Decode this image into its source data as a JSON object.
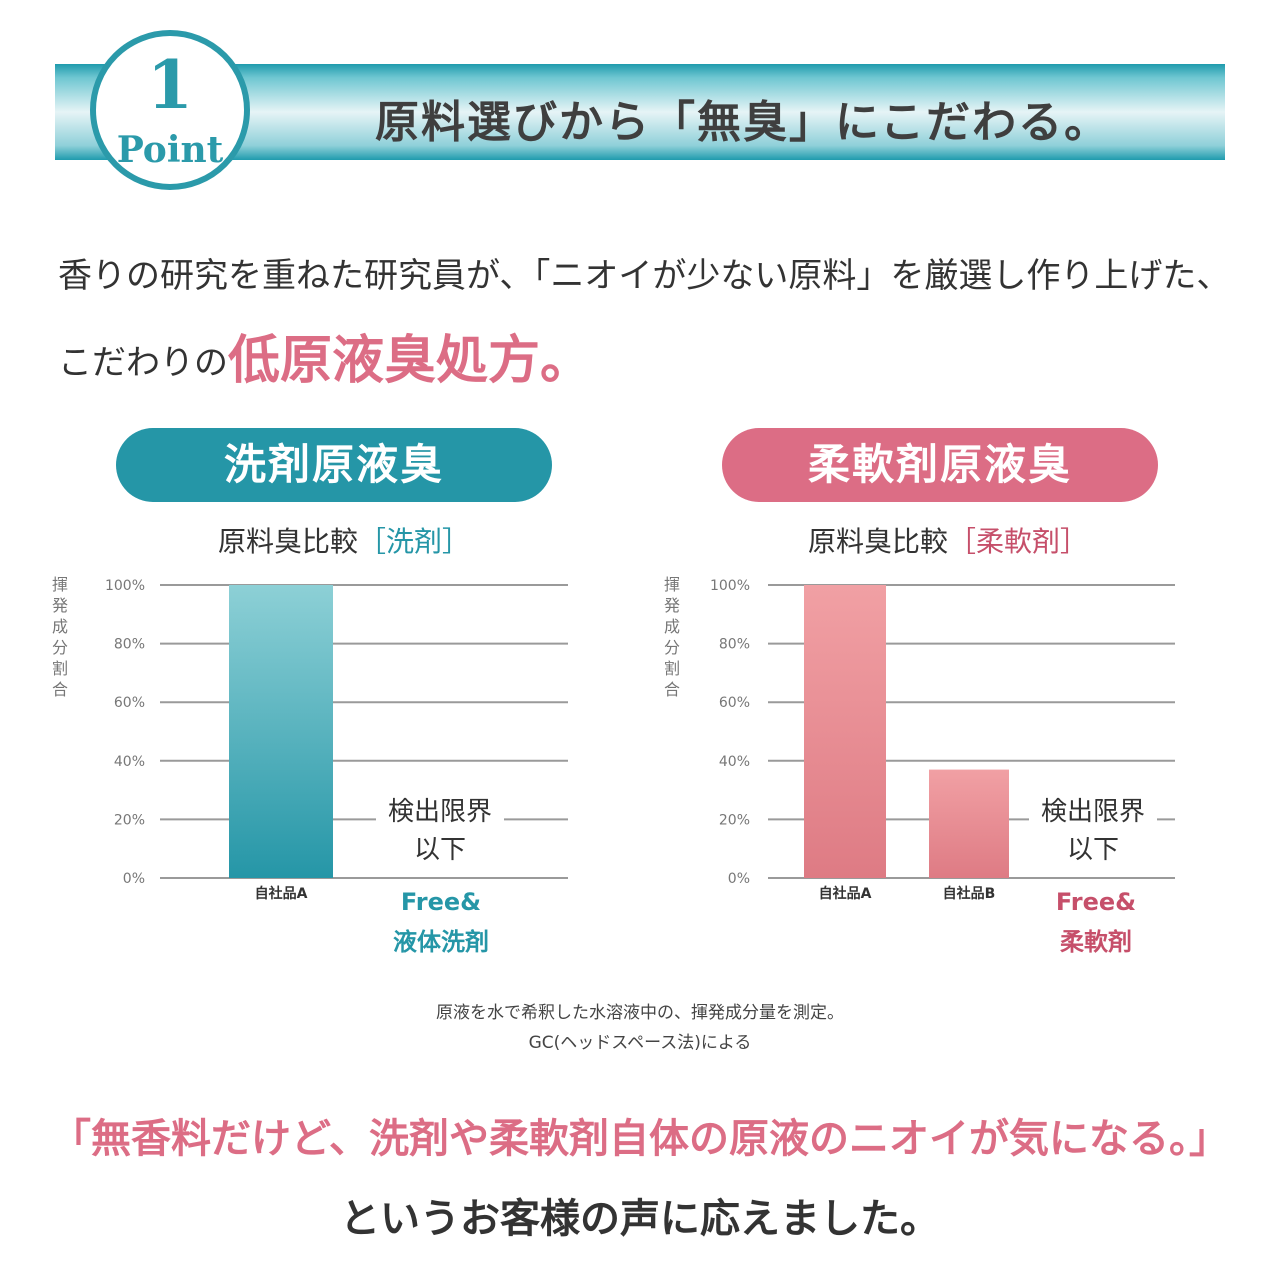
{
  "header": {
    "point_number": "1",
    "point_label": "Point",
    "title": "原料選びから「無臭」にこだわる。"
  },
  "intro": {
    "line1": "香りの研究を重ねた研究員が、「ニオイが少ない原料」を厳選し作り上げた、",
    "line2_prefix": "こだわりの",
    "line2_highlight": "低原液臭処方。"
  },
  "colors": {
    "teal": "#2596a7",
    "pink": "#dc6d85",
    "grid": "#9a9a9a"
  },
  "panels": [
    {
      "pill": "洗剤原液臭",
      "subtitle_prefix": "原料臭比較",
      "subtitle_accent": "［洗剤］"
    },
    {
      "pill": "柔軟剤原液臭",
      "subtitle_prefix": "原料臭比較",
      "subtitle_accent": "［柔軟剤］"
    }
  ],
  "chart_data": [
    {
      "type": "bar",
      "ylabel": "揮発成分割合",
      "ylim": [
        0,
        100
      ],
      "yticks": [
        "0%",
        "20%",
        "40%",
        "60%",
        "80%",
        "100%"
      ],
      "categories": [
        "自社品A",
        "Free&液体洗剤"
      ],
      "values": [
        100,
        0
      ],
      "annotation": [
        "検出限界",
        "以下"
      ],
      "product_label": [
        "Free&",
        "液体洗剤"
      ]
    },
    {
      "type": "bar",
      "ylabel": "揮発成分割合",
      "ylim": [
        0,
        100
      ],
      "yticks": [
        "0%",
        "20%",
        "40%",
        "60%",
        "80%",
        "100%"
      ],
      "categories": [
        "自社品A",
        "自社品B",
        "Free&柔軟剤"
      ],
      "values": [
        100,
        37,
        0
      ],
      "annotation": [
        "検出限界",
        "以下"
      ],
      "product_label": [
        "Free&",
        "柔軟剤"
      ]
    }
  ],
  "notes": {
    "line1": "原液を水で希釈した水溶液中の、揮発成分量を測定。",
    "line2": "GC(ヘッドスペース法)による"
  },
  "closing": {
    "quote": "「無香料だけど、洗剤や柔軟剤自体の原液のニオイが気になる。」",
    "response": "というお客様の声に応えました。"
  }
}
